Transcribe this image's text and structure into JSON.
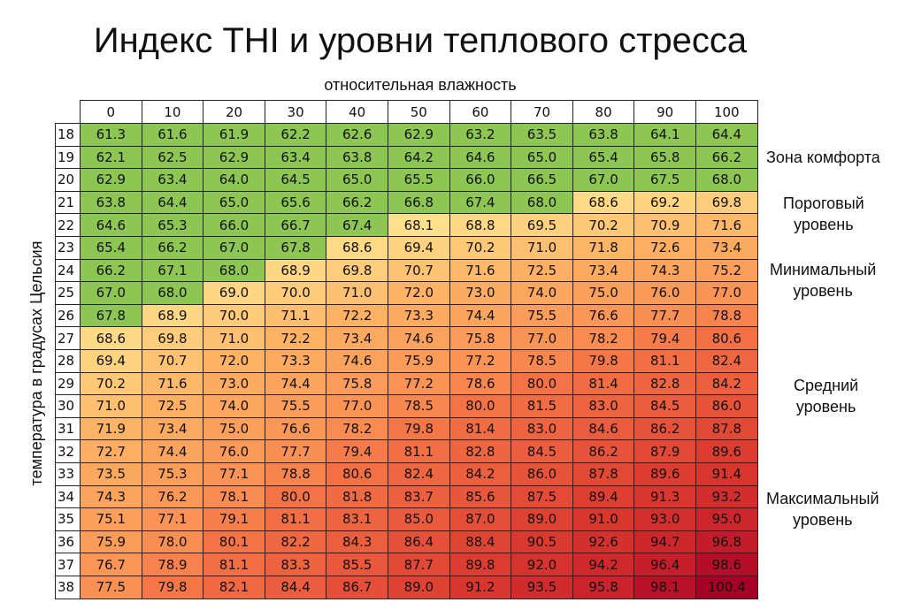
{
  "chart_data": {
    "type": "heatmap",
    "title": "Индекс THI и уровни теплового стресса",
    "xlabel": "относительная влажность",
    "ylabel": "температура в градусах Цельсия",
    "x": [
      "0",
      "10",
      "20",
      "30",
      "40",
      "50",
      "60",
      "70",
      "80",
      "90",
      "100"
    ],
    "y": [
      "18",
      "19",
      "20",
      "21",
      "22",
      "23",
      "24",
      "25",
      "26",
      "27",
      "28",
      "29",
      "30",
      "31",
      "32",
      "33",
      "34",
      "35",
      "36",
      "37",
      "38"
    ],
    "values": [
      [
        "61.3",
        "61.6",
        "61.9",
        "62.2",
        "62.6",
        "62.9",
        "63.2",
        "63.5",
        "63.8",
        "64.1",
        "64.4"
      ],
      [
        "62.1",
        "62.5",
        "62.9",
        "63.4",
        "63.8",
        "64.2",
        "64.6",
        "65.0",
        "65.4",
        "65.8",
        "66.2"
      ],
      [
        "62.9",
        "63.4",
        "64.0",
        "64.5",
        "65.0",
        "65.5",
        "66.0",
        "66.5",
        "67.0",
        "67.5",
        "68.0"
      ],
      [
        "63.8",
        "64.4",
        "65.0",
        "65.6",
        "66.2",
        "66.8",
        "67.4",
        "68.0",
        "68.6",
        "69.2",
        "69.8"
      ],
      [
        "64.6",
        "65.3",
        "66.0",
        "66.7",
        "67.4",
        "68.1",
        "68.8",
        "69.5",
        "70.2",
        "70.9",
        "71.6"
      ],
      [
        "65.4",
        "66.2",
        "67.0",
        "67.8",
        "68.6",
        "69.4",
        "70.2",
        "71.0",
        "71.8",
        "72.6",
        "73.4"
      ],
      [
        "66.2",
        "67.1",
        "68.0",
        "68.9",
        "69.8",
        "70.7",
        "71.6",
        "72.5",
        "73.4",
        "74.3",
        "75.2"
      ],
      [
        "67.0",
        "68.0",
        "69.0",
        "70.0",
        "71.0",
        "72.0",
        "73.0",
        "74.0",
        "75.0",
        "76.0",
        "77.0"
      ],
      [
        "67.8",
        "68.9",
        "70.0",
        "71.1",
        "72.2",
        "73.3",
        "74.4",
        "75.5",
        "76.6",
        "77.7",
        "78.8"
      ],
      [
        "68.6",
        "69.8",
        "71.0",
        "72.2",
        "73.4",
        "74.6",
        "75.8",
        "77.0",
        "78.2",
        "79.4",
        "80.6"
      ],
      [
        "69.4",
        "70.7",
        "72.0",
        "73.3",
        "74.6",
        "75.9",
        "77.2",
        "78.5",
        "79.8",
        "81.1",
        "82.4"
      ],
      [
        "70.2",
        "71.6",
        "73.0",
        "74.4",
        "75.8",
        "77.2",
        "78.6",
        "80.0",
        "81.4",
        "82.8",
        "84.2"
      ],
      [
        "71.0",
        "72.5",
        "74.0",
        "75.5",
        "77.0",
        "78.5",
        "80.0",
        "81.5",
        "83.0",
        "84.5",
        "86.0"
      ],
      [
        "71.9",
        "73.4",
        "75.0",
        "76.6",
        "78.2",
        "79.8",
        "81.4",
        "83.0",
        "84.6",
        "86.2",
        "87.8"
      ],
      [
        "72.7",
        "74.4",
        "76.0",
        "77.7",
        "79.4",
        "81.1",
        "82.8",
        "84.5",
        "86.2",
        "87.9",
        "89.6"
      ],
      [
        "73.5",
        "75.3",
        "77.1",
        "78.8",
        "80.6",
        "82.4",
        "84.2",
        "86.0",
        "87.8",
        "89.6",
        "91.4"
      ],
      [
        "74.3",
        "76.2",
        "78.1",
        "80.0",
        "81.8",
        "83.7",
        "85.6",
        "87.5",
        "89.4",
        "91.3",
        "93.2"
      ],
      [
        "75.1",
        "77.1",
        "79.1",
        "81.1",
        "83.1",
        "85.0",
        "87.0",
        "89.0",
        "91.0",
        "93.0",
        "95.0"
      ],
      [
        "75.9",
        "78.0",
        "80.1",
        "82.2",
        "84.3",
        "86.4",
        "88.4",
        "90.5",
        "92.6",
        "94.7",
        "96.8"
      ],
      [
        "76.7",
        "78.9",
        "81.1",
        "83.3",
        "85.5",
        "87.7",
        "89.8",
        "92.0",
        "94.2",
        "96.4",
        "98.6"
      ],
      [
        "77.5",
        "79.8",
        "82.1",
        "84.4",
        "86.7",
        "89.0",
        "91.2",
        "93.5",
        "95.8",
        "98.1",
        "100.4"
      ]
    ],
    "zones": [
      {
        "label": "Зона комфорта",
        "color": "#8dc653"
      },
      {
        "label": "Пороговый уровень",
        "color": "#fde08b"
      },
      {
        "label": "Минимальный уровень",
        "color": "#fdb868"
      },
      {
        "label": "Средний уровень",
        "color": "#f46d43"
      },
      {
        "label": "Максимальный уровень",
        "color": "#d3262a"
      }
    ],
    "colorscale": {
      "stops": [
        {
          "v": 68.0,
          "color": "#8dc653"
        },
        {
          "v": 68.1,
          "color": "#fee08b"
        },
        {
          "v": 71.0,
          "color": "#fdc070"
        },
        {
          "v": 72.0,
          "color": "#fdb264"
        },
        {
          "v": 78.0,
          "color": "#f98e52"
        },
        {
          "v": 80.0,
          "color": "#f47346"
        },
        {
          "v": 85.0,
          "color": "#ea5a3d"
        },
        {
          "v": 90.0,
          "color": "#dc3b2f"
        },
        {
          "v": 96.0,
          "color": "#c9222b"
        },
        {
          "v": 100.4,
          "color": "#a50026"
        }
      ]
    }
  },
  "legend": {
    "comfort": "Зона комфорта",
    "threshold_1": "Пороговый",
    "threshold_2": "уровень",
    "minimal_1": "Минимальный",
    "minimal_2": "уровень",
    "medium_1": "Средний",
    "medium_2": "уровень",
    "maximal_1": "Максимальный",
    "maximal_2": "уровень"
  }
}
